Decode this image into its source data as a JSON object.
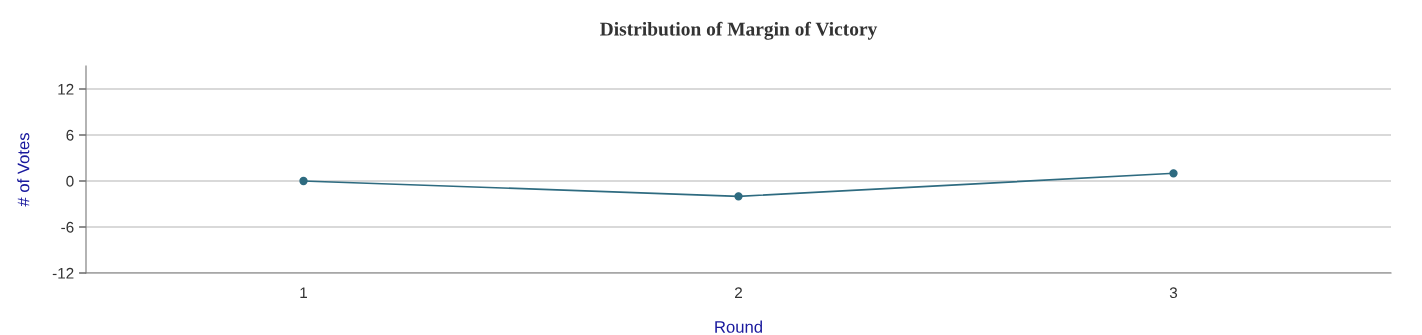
{
  "chart_data": {
    "type": "line",
    "title": "Distribution of Margin of Victory",
    "xlabel": "Round",
    "ylabel": "# of Votes",
    "x": [
      1,
      2,
      3
    ],
    "series": [
      {
        "color": "#2e6b80",
        "values": [
          0,
          -2,
          1
        ]
      }
    ],
    "xlim": [
      0.5,
      3.5
    ],
    "xticks": [
      1,
      2,
      3
    ],
    "ylim": [
      -12,
      15
    ],
    "yticks": [
      -12,
      -6,
      0,
      6,
      12
    ],
    "grid": "y",
    "marker": "circle",
    "line_style": "solid"
  }
}
